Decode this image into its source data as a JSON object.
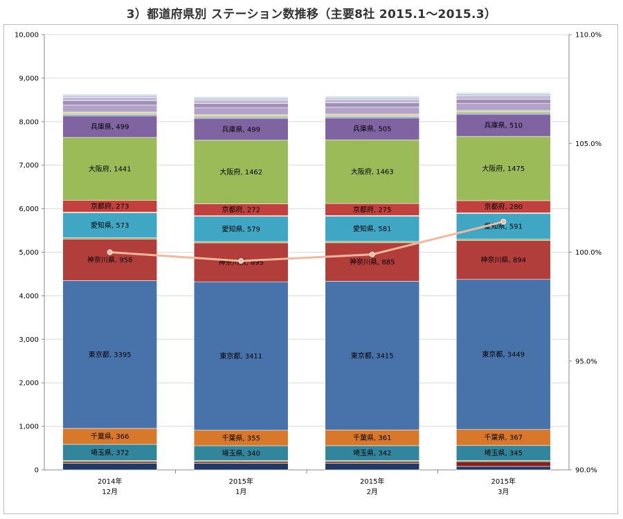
{
  "title": "3）都道府県別 ステーション数推移（主要8社 2015.1〜2015.3）",
  "chart_data": {
    "type": "bar",
    "stacked": true,
    "categories": [
      [
        "2014年",
        "12月"
      ],
      [
        "2015年",
        "1月"
      ],
      [
        "2015年",
        "2月"
      ],
      [
        "2015年",
        "3月"
      ]
    ],
    "ylim": [
      0,
      10000
    ],
    "yticks": [
      "0",
      "1,000",
      "2,000",
      "3,000",
      "4,000",
      "5,000",
      "6,000",
      "7,000",
      "8,000",
      "9,000",
      "10,000"
    ],
    "y2lim": [
      90.0,
      110.0
    ],
    "y2ticks": [
      "90.0%",
      "95.0%",
      "100.0%",
      "105.0%",
      "110.0%"
    ],
    "grid": true,
    "series": [
      {
        "name": "",
        "color": "#1f3a66",
        "values": [
          150,
          150,
          150,
          80
        ]
      },
      {
        "name": "",
        "color": "#8b1f1f",
        "values": [
          40,
          40,
          40,
          110
        ]
      },
      {
        "name": "",
        "color": "#6a9a32",
        "values": [
          25,
          25,
          25,
          25
        ]
      },
      {
        "name": "埼玉県",
        "color": "#31859c",
        "values": [
          372,
          340,
          342,
          345
        ]
      },
      {
        "name": "千葉県",
        "color": "#d8782a",
        "values": [
          366,
          355,
          361,
          367
        ]
      },
      {
        "name": "東京都",
        "color": "#4873aa",
        "values": [
          3395,
          3411,
          3415,
          3449
        ]
      },
      {
        "name": "神奈川県",
        "color": "#b13e3b",
        "values": [
          956,
          895,
          885,
          894
        ]
      },
      {
        "name": "",
        "color": "#8aaa46",
        "values": [
          30,
          30,
          30,
          30
        ]
      },
      {
        "name": "愛知県",
        "color": "#3fa7c4",
        "values": [
          573,
          579,
          581,
          591
        ]
      },
      {
        "name": "",
        "color": "#e8964a",
        "values": [
          15,
          15,
          15,
          15
        ]
      },
      {
        "name": "京都府",
        "color": "#c2403d",
        "values": [
          273,
          272,
          275,
          280
        ]
      },
      {
        "name": "大阪府",
        "color": "#9bbb59",
        "values": [
          1441,
          1462,
          1463,
          1475
        ]
      },
      {
        "name": "兵庫県",
        "color": "#8064a2",
        "values": [
          499,
          499,
          505,
          510
        ]
      },
      {
        "name": "",
        "color": "#4bacc6",
        "values": [
          30,
          30,
          30,
          30
        ]
      },
      {
        "name": "",
        "color": "#f79646",
        "values": [
          25,
          25,
          25,
          25
        ]
      },
      {
        "name": "",
        "color": "#b9cf8e",
        "values": [
          30,
          30,
          30,
          30
        ]
      },
      {
        "name": "",
        "color": "#b3a2c7",
        "values": [
          160,
          160,
          160,
          160
        ]
      },
      {
        "name": "",
        "color": "#a090b8",
        "values": [
          100,
          100,
          100,
          100
        ]
      },
      {
        "name": "",
        "color": "#c5b9d8",
        "values": [
          80,
          80,
          80,
          80
        ]
      },
      {
        "name": "",
        "color": "#b8cce4",
        "values": [
          45,
          45,
          45,
          45
        ]
      },
      {
        "name": "",
        "color": "#d9d9d9",
        "values": [
          30,
          30,
          30,
          30
        ]
      }
    ],
    "line": {
      "name": "",
      "color": "#f4b89a",
      "axis": "secondary",
      "values": [
        100.0,
        99.6,
        99.9,
        101.4
      ]
    }
  }
}
